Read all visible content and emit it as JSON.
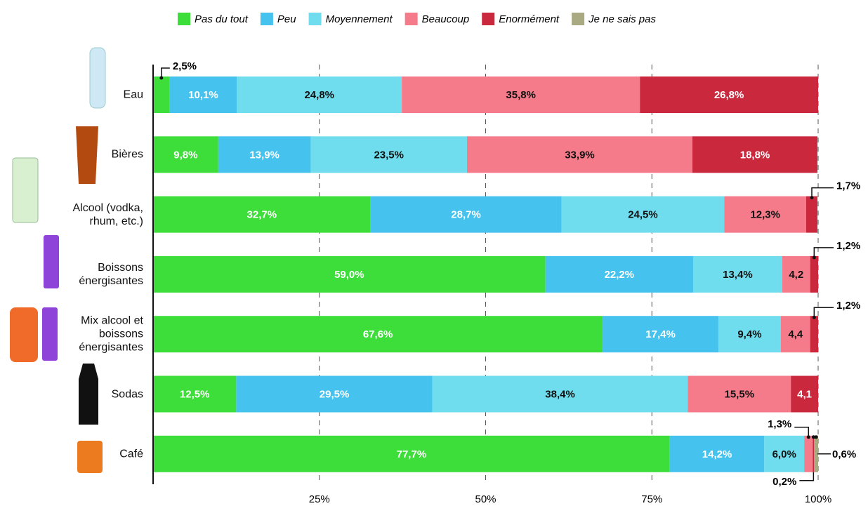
{
  "chart_data": {
    "type": "stacked-barh",
    "categories": [
      "Eau",
      "Bières",
      "Alcool (vodka, rhum, etc.)",
      "Boissons énergisantes",
      "Mix alcool et boissons énergisantes",
      "Sodas",
      "Café"
    ],
    "series": [
      {
        "name": "Pas du tout",
        "color": "#3ddd3a",
        "values": [
          2.5,
          9.8,
          32.7,
          59.0,
          67.6,
          12.5,
          77.7
        ],
        "value_labels": [
          "2,5%",
          "9,8%",
          "32,7%",
          "59,0%",
          "67,6%",
          "12,5%",
          "77,7%"
        ]
      },
      {
        "name": "Peu",
        "color": "#45c2ee",
        "values": [
          10.1,
          13.9,
          28.7,
          22.2,
          17.4,
          29.5,
          14.2
        ],
        "value_labels": [
          "10,1%",
          "13,9%",
          "28,7%",
          "22,2%",
          "17,4%",
          "29,5%",
          "14,2%"
        ]
      },
      {
        "name": "Moyennement",
        "color": "#6fdded",
        "values": [
          24.8,
          23.5,
          24.5,
          13.4,
          9.4,
          38.4,
          6.0
        ],
        "value_labels": [
          "24,8%",
          "23,5%",
          "24,5%",
          "13,4%",
          "9,4%",
          "38,4%",
          "6,0%"
        ]
      },
      {
        "name": "Beaucoup",
        "color": "#f57a8a",
        "values": [
          35.8,
          33.9,
          12.3,
          4.2,
          4.4,
          15.5,
          1.3
        ],
        "value_labels": [
          "35,8%",
          "33,9%",
          "12,3%",
          "4,2",
          "4,4",
          "15,5%",
          "1,3%"
        ]
      },
      {
        "name": "Enormément",
        "color": "#c9283d",
        "values": [
          26.8,
          18.8,
          1.7,
          1.2,
          1.2,
          4.1,
          0.2
        ],
        "value_labels": [
          "26,8%",
          "18,8%",
          "1,7%",
          "1,2%",
          "1,2%",
          "4,1",
          "0,2%"
        ]
      },
      {
        "name": "Je ne sais pas",
        "color": "#a9a982",
        "values": [
          null,
          null,
          null,
          null,
          null,
          null,
          0.6
        ],
        "value_labels": [
          null,
          null,
          null,
          null,
          null,
          null,
          "0,6%"
        ]
      }
    ],
    "xlim": [
      0,
      100
    ],
    "xticks": [
      {
        "value": 25,
        "label": "25%"
      },
      {
        "value": 50,
        "label": "50%"
      },
      {
        "value": 75,
        "label": "75%"
      },
      {
        "value": 100,
        "label": "100%"
      }
    ],
    "grid": true,
    "legend": "top"
  }
}
